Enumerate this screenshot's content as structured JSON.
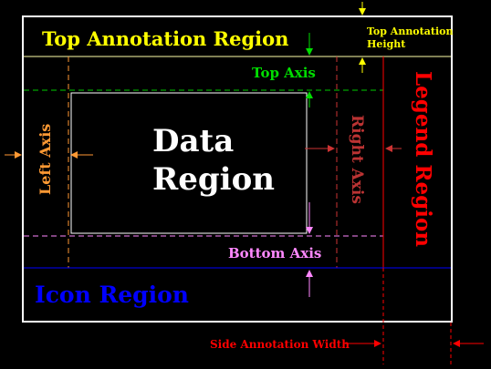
{
  "labels": {
    "top_annotation_region": "Top Annotation Region",
    "top_annotation_height_line1": "Top Annotation",
    "top_annotation_height_line2": "Height",
    "top_axis": "Top Axis",
    "left_axis": "Left Axis",
    "data_region_line1": "Data",
    "data_region_line2": "Region",
    "right_axis": "Right Axis",
    "legend_region": "Legend Region",
    "bottom_axis": "Bottom Axis",
    "icon_region": "Icon Region",
    "side_annotation_width": "Side Annotation Width"
  },
  "colors": {
    "background": "#000000",
    "frame": "#ffffff",
    "top_annotation": "#ffff00",
    "top_axis": "#00dd00",
    "left_axis": "#ff9933",
    "right_axis": "#bb3333",
    "legend": "#ff0000",
    "bottom_axis": "#ff88ff",
    "icon": "#0000ff",
    "annotation_width": "#ff0000"
  }
}
